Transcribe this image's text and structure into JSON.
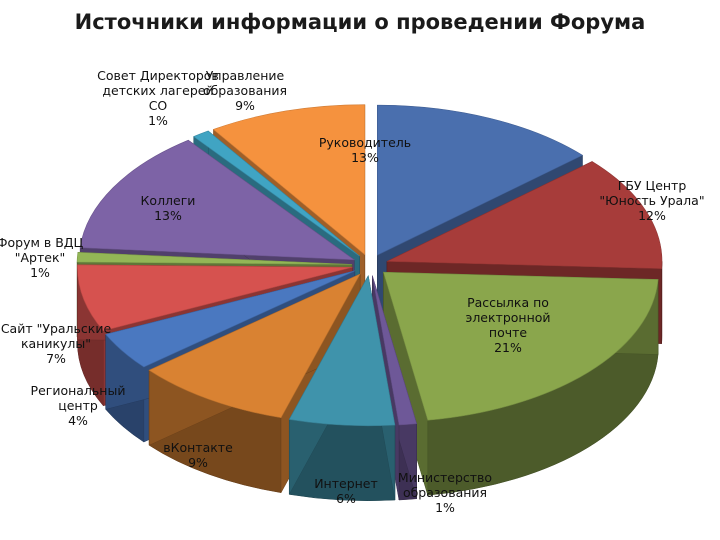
{
  "chart_data": {
    "type": "pie",
    "title": "Источники информации о проведении Форума",
    "categories": [
      "Руководитель",
      "ГБУ Центр \"Юность Урала\"",
      "Рассылка по электронной почте",
      "Министерство образования",
      "Интернет",
      "вКонтакте",
      "Региональный центр",
      "Сайт \"Уральские каникулы\"",
      "Форум в ВДЦ \"Артек\"",
      "Коллеги",
      "Совет Директоров детских лагерей СО",
      "Управление образования"
    ],
    "values": [
      13,
      12,
      21,
      1,
      6,
      9,
      4,
      7,
      1,
      13,
      1,
      9
    ],
    "value_labels": [
      "13%",
      "12%",
      "21%",
      "1%",
      "6%",
      "9%",
      "4%",
      "7%",
      "1%",
      "13%",
      "1%",
      "9%"
    ],
    "colors": [
      "#4a6fae",
      "#a73c3a",
      "#8aa64c",
      "#6e5898",
      "#3f93ab",
      "#d98232",
      "#4a78c0",
      "#d6524f",
      "#93b656",
      "#7d63a6",
      "#40a4c3",
      "#f5923e"
    ],
    "label_lines": [
      [
        "Руководитель",
        "13%"
      ],
      [
        "ГБУ Центр",
        "\"Юность Урала\"",
        "12%"
      ],
      [
        "Рассылка по",
        "электронной",
        "почте",
        "21%"
      ],
      [
        "Министерство",
        "образования",
        "1%"
      ],
      [
        "Интернет",
        "6%"
      ],
      [
        "вКонтакте",
        "9%"
      ],
      [
        "Региональный",
        "центр",
        "4%"
      ],
      [
        "Сайт \"Уральские",
        "каникулы\"",
        "7%"
      ],
      [
        "Форум в ВДЦ",
        "\"Артек\"",
        "1%"
      ],
      [
        "Коллеги",
        "13%"
      ],
      [
        "Совет Директоров",
        "детских лагерей",
        "СО",
        "1%"
      ],
      [
        "Управление",
        "образования",
        "9%"
      ]
    ],
    "legend": "none",
    "style": "exploded 3d pie"
  }
}
